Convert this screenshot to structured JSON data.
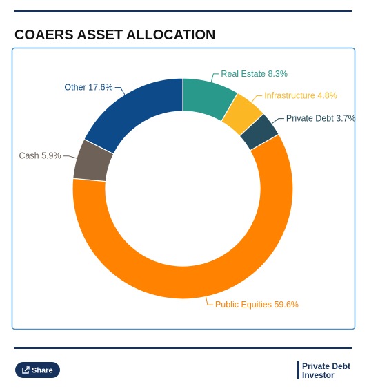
{
  "chart_data": {
    "type": "donut",
    "title": "COAERS ASSET ALLOCATION",
    "categories": [
      "Real Estate",
      "Infrastructure",
      "Private Debt",
      "Public Equities",
      "Cash",
      "Other"
    ],
    "values": [
      8.3,
      4.8,
      3.7,
      59.6,
      5.9,
      17.6
    ],
    "value_labels": [
      "8.3%",
      "4.8%",
      "3.7%",
      "59.6%",
      "5.9%",
      "17.6%"
    ],
    "colors": [
      "#28998a",
      "#fbb824",
      "#264e5e",
      "#ff8200",
      "#6d6158",
      "#0c4a89"
    ]
  },
  "footer": {
    "share": "Share",
    "brand": [
      "Private Debt",
      "Investor"
    ]
  }
}
